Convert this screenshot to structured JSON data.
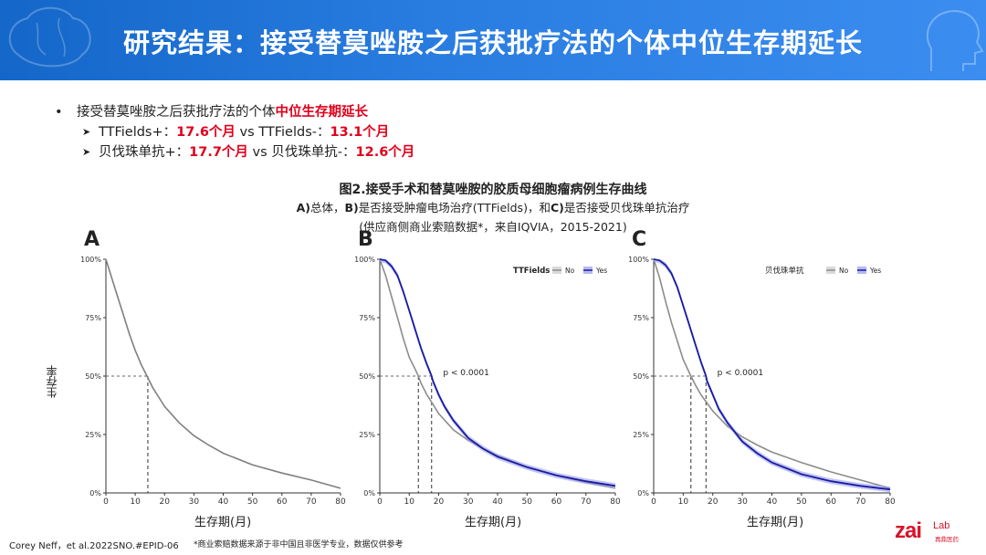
{
  "header": {
    "title": "研究结果：接受替莫唑胺之后获批疗法的个体中位生存期延长"
  },
  "bullets": {
    "main_prefix": "接受替莫唑胺之后获批疗法的个体",
    "main_highlight": "中位生存期延长",
    "ttf_prefix": "TTFields+：",
    "ttf_plus": "17.6个月",
    "ttf_mid": " vs TTFields-：",
    "ttf_minus": "13.1个月",
    "bev_prefix": "贝伐珠单抗+：",
    "bev_plus": "17.7个月",
    "bev_mid": " vs 贝伐珠单抗-：",
    "bev_minus": "12.6个月"
  },
  "figure": {
    "title": "图2.接受手术和替莫唑胺的胶质母细胞瘤病例生存曲线",
    "sub_a": "A)",
    "sub_a_text": "总体，",
    "sub_b": "B)",
    "sub_b_text": "是否接受肿瘤电场治疗(TTFields)，和",
    "sub_c": "C)",
    "sub_c_text": "是否接受贝伐珠单抗治疗",
    "source": "(供应商侧商业索赔数据*，来自IQVIA，2015-2021)",
    "ylabel": "生存率",
    "xlabel": "生存期(月)"
  },
  "chart_data": [
    {
      "type": "line",
      "panel": "A",
      "xlabel": "生存期(月)",
      "ylabel": "生存率",
      "xlim": [
        0,
        80
      ],
      "ylim": [
        0,
        1
      ],
      "xticks": [
        "0",
        "10",
        "20",
        "30",
        "40",
        "50",
        "60",
        "70",
        "80"
      ],
      "yticks": [
        "0%",
        "25%",
        "50%",
        "75%",
        "100%"
      ],
      "median_x": 14.3,
      "series": [
        {
          "color": "#7f7f7f",
          "x": [
            0,
            2,
            4,
            6,
            8,
            10,
            12,
            14,
            16,
            18,
            20,
            25,
            30,
            35,
            40,
            50,
            60,
            70,
            80
          ],
          "y": [
            1.0,
            0.92,
            0.84,
            0.76,
            0.68,
            0.61,
            0.55,
            0.5,
            0.45,
            0.41,
            0.37,
            0.3,
            0.245,
            0.205,
            0.17,
            0.12,
            0.085,
            0.055,
            0.02
          ]
        }
      ]
    },
    {
      "type": "line",
      "panel": "B",
      "xlabel": "生存期(月)",
      "xlim": [
        0,
        80
      ],
      "ylim": [
        0,
        1
      ],
      "xticks": [
        "0",
        "10",
        "20",
        "30",
        "40",
        "50",
        "60",
        "70",
        "80"
      ],
      "yticks": [
        "0%",
        "25%",
        "50%",
        "75%",
        "100%"
      ],
      "legend_title": "TTFields",
      "annotation": "p < 0.0001",
      "median_x": [
        13.1,
        17.6
      ],
      "series": [
        {
          "name": "No",
          "color": "#8c8c8c",
          "x": [
            0,
            2,
            4,
            6,
            8,
            10,
            12,
            13.1,
            14,
            16,
            18,
            20,
            25,
            30,
            35,
            40,
            50,
            60,
            70,
            80
          ],
          "y": [
            1.0,
            0.93,
            0.84,
            0.75,
            0.66,
            0.58,
            0.53,
            0.5,
            0.47,
            0.42,
            0.38,
            0.34,
            0.27,
            0.225,
            0.19,
            0.16,
            0.11,
            0.075,
            0.045,
            0.02
          ]
        },
        {
          "name": "Yes",
          "color": "#1a1aa6",
          "x": [
            0,
            2,
            4,
            6,
            8,
            10,
            12,
            14,
            16,
            17.6,
            18,
            20,
            22,
            25,
            30,
            35,
            40,
            50,
            60,
            70,
            80
          ],
          "y": [
            1.0,
            0.995,
            0.97,
            0.93,
            0.86,
            0.78,
            0.7,
            0.62,
            0.55,
            0.5,
            0.48,
            0.42,
            0.37,
            0.31,
            0.235,
            0.19,
            0.155,
            0.11,
            0.075,
            0.05,
            0.03
          ]
        }
      ]
    },
    {
      "type": "line",
      "panel": "C",
      "xlabel": "生存期(月)",
      "xlim": [
        0,
        80
      ],
      "ylim": [
        0,
        1
      ],
      "xticks": [
        "0",
        "10",
        "20",
        "30",
        "40",
        "50",
        "60",
        "70",
        "80"
      ],
      "yticks": [
        "0%",
        "25%",
        "50%",
        "75%",
        "100%"
      ],
      "legend_title": "贝伐珠单抗",
      "annotation": "p < 0.0001",
      "median_x": [
        12.6,
        17.7
      ],
      "series": [
        {
          "name": "No",
          "color": "#8c8c8c",
          "x": [
            0,
            2,
            4,
            6,
            8,
            10,
            12.6,
            14,
            16,
            18,
            20,
            25,
            30,
            35,
            40,
            50,
            60,
            70,
            80
          ],
          "y": [
            1.0,
            0.92,
            0.82,
            0.73,
            0.65,
            0.57,
            0.5,
            0.465,
            0.42,
            0.385,
            0.35,
            0.285,
            0.24,
            0.205,
            0.175,
            0.13,
            0.09,
            0.055,
            0.02
          ]
        },
        {
          "name": "Yes",
          "color": "#1a1aa6",
          "x": [
            0,
            2,
            4,
            6,
            8,
            10,
            12,
            14,
            16,
            17.7,
            18,
            20,
            22,
            25,
            30,
            35,
            40,
            50,
            60,
            70,
            80
          ],
          "y": [
            1.0,
            0.995,
            0.975,
            0.94,
            0.88,
            0.8,
            0.72,
            0.64,
            0.56,
            0.5,
            0.48,
            0.42,
            0.36,
            0.3,
            0.22,
            0.17,
            0.13,
            0.08,
            0.05,
            0.03,
            0.015
          ]
        }
      ]
    }
  ],
  "footer": {
    "citation": "Corey Neff，et al.2022SNO.#EPID-06",
    "note": "*商业索赔数据来源于非中国且非医学专业，数据仅供参考",
    "logo_zai": "zai",
    "logo_lab": "Lab",
    "logo_cn": "再鼎医药"
  }
}
